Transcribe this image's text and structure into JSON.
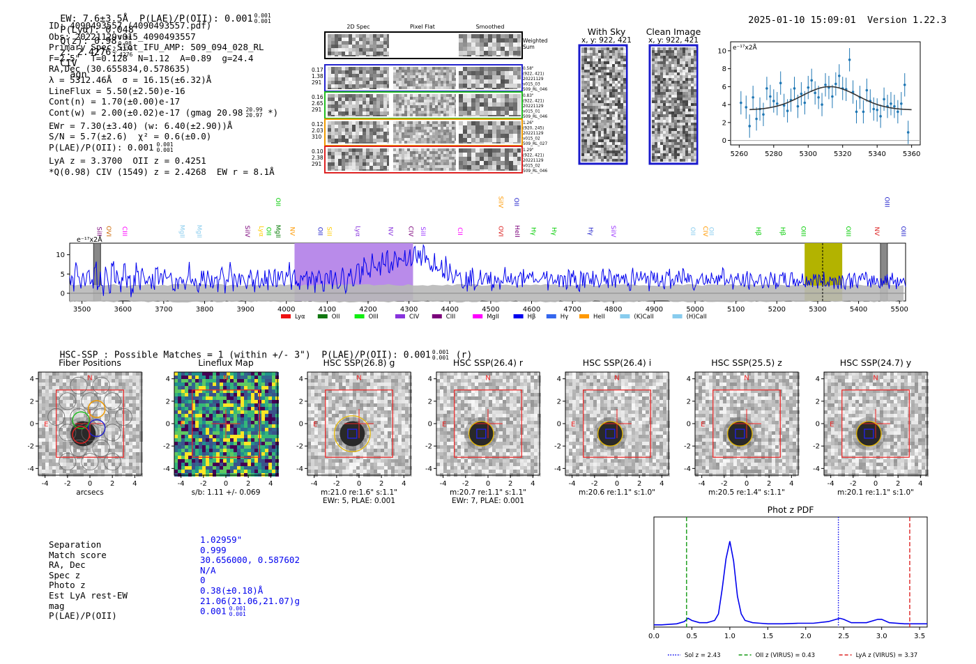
{
  "header": {
    "line": "EW: 7.6±3.5Å  P(LAE)/P(OII): 0.001",
    "pla_sup": "0.001",
    "pla_sub": "0.001",
    "plya": "P(Lyα): 0.048",
    "q": "Q(z): 0.98",
    "q_sup": "0.98",
    "q_sub": "0.98",
    "z": "z: 2.4276",
    "z_sup": "2.4276",
    "z_sub": "2.4276",
    "line_name": "CIV",
    "cls": "agn",
    "timestamp": "2025-01-10 15:09:01",
    "version": "Version 1.22.3"
  },
  "info": {
    "lines": [
      "ID: 4090493557 (4090493557.pdf)",
      "Obs: 20221129v015_4090493557",
      "Primary Spec_Slot_IFU_AMP: 509_094_028_RL",
      "F=2.5\"  T=0.128  N=1.12  A=0.89  g=24.4",
      "RA,Dec (30.655834,0.578635)",
      "λ = 5312.46Å  σ = 16.15(±6.32)Å",
      "LineFlux = 5.50(±2.50)e-16",
      "Cont(n) = 1.70(±0.00)e-17",
      "Cont(w) = 2.00(±0.02)e-17 (gmag 20.98",
      "EWr = 7.30(±3.40) (w: 6.40(±2.90))Å",
      "S/N = 5.7(±2.6)  χ² = 0.6(±0.0)",
      "P(LAE)/P(OII): 0.001",
      "LyA z = 3.3700  OII z = 0.4251",
      "*Q(0.98) CIV (1549) z = 2.4268  EW r = 8.1Å"
    ],
    "gmag_sup": "20.99",
    "gmag_sub": "20.97",
    "gmag_close": " *)",
    "pla_sup": "0.001",
    "pla_sub": "0.001"
  },
  "fiber_panel": {
    "col_titles": [
      "2D Spec",
      "Pixel Flat",
      "Smoothed"
    ],
    "weighted_label": "Weighted Sum",
    "rows": [
      {
        "color": "#2222cc",
        "left": [
          "0.17",
          "1.38",
          "291"
        ],
        "right": [
          "0.58\"",
          "(922, 421)",
          "20221129",
          "v015_03",
          "509_RL_046"
        ]
      },
      {
        "color": "#22bb22",
        "left": [
          "0.16",
          "2.65",
          "291"
        ],
        "right": [
          "0.83\"",
          "(922, 421)",
          "20221129",
          "v015_01",
          "509_RL_046"
        ]
      },
      {
        "color": "#ee9900",
        "left": [
          "0.12",
          "2.03",
          "310"
        ],
        "right": [
          "1.26\"",
          "(920, 245)",
          "20221129",
          "v015_02",
          "509_RL_027"
        ]
      },
      {
        "color": "#dd2222",
        "left": [
          "0.10",
          "2.38",
          "291"
        ],
        "right": [
          "1.29\"",
          "(922, 421)",
          "20221129",
          "v015_02",
          "509_RL_046"
        ]
      }
    ]
  },
  "cutout_strips": {
    "with_sky": {
      "title": "With Sky",
      "coords": "x, y: 922, 421"
    },
    "clean": {
      "title": "Clean Image",
      "coords": "x, y: 922, 421"
    }
  },
  "zoom_chart": {
    "unit_label": "e⁻¹⁷x2Å",
    "x_ticks": [
      5260,
      5280,
      5300,
      5320,
      5340,
      5360
    ],
    "y_ticks": [
      0,
      2,
      4,
      6,
      8,
      10
    ],
    "xlim": [
      5255,
      5365
    ],
    "ylim": [
      -0.5,
      11
    ]
  },
  "wide_chart": {
    "unit_label": "e⁻¹⁷x2Å",
    "x_ticks": [
      3500,
      3600,
      3700,
      3800,
      3900,
      4000,
      4100,
      4200,
      4300,
      4400,
      4500,
      4600,
      4700,
      4800,
      4900,
      5000,
      5100,
      5200,
      5300,
      5400,
      5500
    ],
    "y_ticks": [
      0,
      5,
      10
    ],
    "xlim": [
      3470,
      5515
    ],
    "ylim": [
      -2,
      13
    ],
    "purple_band": [
      4020,
      4310
    ],
    "yellow_band": [
      5268,
      5360
    ],
    "dashed_x": 5312,
    "grey_bars": [
      3537,
      5462
    ],
    "line_labels": [
      {
        "t": "SiII",
        "x": 3537,
        "row": 1,
        "c": "#7a007a"
      },
      {
        "t": "OVI",
        "x": 3560,
        "row": 1,
        "c": "#cc6600"
      },
      {
        "t": "CIII",
        "x": 3600,
        "row": 1,
        "c": "#ff00ff"
      },
      {
        "t": "MgII",
        "x": 3740,
        "row": 1,
        "c": "#88ccee"
      },
      {
        "t": "MgII",
        "x": 3782,
        "row": 1,
        "c": "#88ccee"
      },
      {
        "t": "SiIV",
        "x": 3900,
        "row": 1,
        "c": "#7a007a"
      },
      {
        "t": "Lyα",
        "x": 3934,
        "row": 1,
        "c": "#ffcc00"
      },
      {
        "t": "OII",
        "x": 3952,
        "row": 1,
        "c": "#00cc00"
      },
      {
        "t": "MgII",
        "x": 3975,
        "row": 1,
        "c": "#007700"
      },
      {
        "t": "OII",
        "x": 3975,
        "row": 0,
        "c": "#00cc00"
      },
      {
        "t": "NV",
        "x": 4010,
        "row": 1,
        "c": "#ff9900"
      },
      {
        "t": "OII",
        "x": 4078,
        "row": 1,
        "c": "#2222cc"
      },
      {
        "t": "SiII",
        "x": 4100,
        "row": 1,
        "c": "#ffcc00"
      },
      {
        "t": "Lyα",
        "x": 4170,
        "row": 1,
        "c": "#8833dd"
      },
      {
        "t": "NV",
        "x": 4250,
        "row": 1,
        "c": "#8833dd"
      },
      {
        "t": "CIV",
        "x": 4300,
        "row": 1,
        "c": "#7a007a"
      },
      {
        "t": "SiII",
        "x": 4330,
        "row": 1,
        "c": "#9933ff"
      },
      {
        "t": "CII",
        "x": 4420,
        "row": 1,
        "c": "#ff00ff"
      },
      {
        "t": "OVI",
        "x": 4520,
        "row": 1,
        "c": "#dd2222"
      },
      {
        "t": "SiIV",
        "x": 4520,
        "row": 0,
        "c": "#ff9900"
      },
      {
        "t": "OII",
        "x": 4558,
        "row": 0,
        "c": "#2222cc"
      },
      {
        "t": "HeII",
        "x": 4560,
        "row": 1,
        "c": "#7a007a"
      },
      {
        "t": "Hγ",
        "x": 4600,
        "row": 1,
        "c": "#00cc00"
      },
      {
        "t": "Hγ",
        "x": 4650,
        "row": 1,
        "c": "#00cc00"
      },
      {
        "t": "Hγ",
        "x": 4740,
        "row": 1,
        "c": "#2222cc"
      },
      {
        "t": "SiIV",
        "x": 4795,
        "row": 1,
        "c": "#9933ff"
      },
      {
        "t": "OII",
        "x": 4990,
        "row": 1,
        "c": "#88ccee"
      },
      {
        "t": "CIV",
        "x": 5020,
        "row": 1,
        "c": "#ff9900"
      },
      {
        "t": "OII",
        "x": 5035,
        "row": 1,
        "c": "#88ccee"
      },
      {
        "t": "Hβ",
        "x": 5150,
        "row": 1,
        "c": "#00cc00"
      },
      {
        "t": "Hβ",
        "x": 5210,
        "row": 1,
        "c": "#00cc00"
      },
      {
        "t": "OIII",
        "x": 5260,
        "row": 1,
        "c": "#00cc00"
      },
      {
        "t": "OIII",
        "x": 5370,
        "row": 1,
        "c": "#00cc00"
      },
      {
        "t": "NV",
        "x": 5440,
        "row": 1,
        "c": "#dd2222"
      },
      {
        "t": "OIII",
        "x": 5505,
        "row": 1,
        "c": "#2222cc"
      },
      {
        "t": "OIII",
        "x": 5465,
        "row": 0,
        "c": "#2222cc"
      }
    ],
    "legend": [
      {
        "t": "Lyα",
        "c": "#ee1111"
      },
      {
        "t": "OII",
        "c": "#117711"
      },
      {
        "t": "OIII",
        "c": "#11ee11"
      },
      {
        "t": "CIV",
        "c": "#8833dd"
      },
      {
        "t": "CIII",
        "c": "#7a007a"
      },
      {
        "t": "MgII",
        "c": "#ff00ff"
      },
      {
        "t": "Hβ",
        "c": "#0000ee"
      },
      {
        "t": "Hγ",
        "c": "#3366ee"
      },
      {
        "t": "HeII",
        "c": "#ff9900"
      },
      {
        "t": "(K)CaII",
        "c": "#88ccee"
      },
      {
        "t": "(H)CaII",
        "c": "#88ccee"
      }
    ]
  },
  "hsc": {
    "summary": "HSC-SSP : Possible Matches = 1 (within +/- 3\")  P(LAE)/P(OII): 0.001",
    "sum_sup": "0.001",
    "sum_sub": "0.001",
    "sum_tail": " (r)",
    "ticks": [
      -4,
      -2,
      0,
      2,
      4
    ],
    "panels": [
      {
        "title": "Fiber Positions",
        "cap1": "arcsecs",
        "cap2": ""
      },
      {
        "title": "Lineflux Map",
        "cap1": "s/b: 1.11 +/- 0.069",
        "cap2": ""
      },
      {
        "title": "HSC SSP(26.8) g",
        "cap1": "m:21.0  re:1.6\"  s:1.1\"",
        "cap2": "EWr: 5, PLAE: 0.001"
      },
      {
        "title": "HSC SSP(26.4) r",
        "cap1": "m:20.7  re:1.1\"  s:1.1\"",
        "cap2": "EWr: 7, PLAE: 0.001"
      },
      {
        "title": "HSC SSP(26.4) i",
        "cap1": "m:20.6  re:1.1\"  s:1.0\"",
        "cap2": ""
      },
      {
        "title": "HSC SSP(25.5) z",
        "cap1": "m:20.5  re:1.4\"  s:1.1\"",
        "cap2": ""
      },
      {
        "title": "HSC SSP(24.7) y",
        "cap1": "m:20.1  re:1.1\"  s:1.0\"",
        "cap2": ""
      }
    ],
    "compass_n": "N",
    "compass_e": "E"
  },
  "match_table": {
    "labels": [
      "Separation",
      "Match score",
      "RA, Dec",
      "Spec z",
      "Photo z",
      "Est LyA rest-EW",
      "mag",
      "P(LAE)/P(OII)"
    ],
    "values": [
      "1.02959\"",
      "0.999",
      "30.656000, 0.587602",
      "N/A",
      "0",
      "0.38(±0.18)Å",
      "21.06(21.06,21.07)g",
      "0.001"
    ],
    "pla_sup": "0.001",
    "pla_sub": "0.001"
  },
  "chart_data": [
    {
      "type": "scatter",
      "title": "",
      "ylabel": "e-17 x2Å",
      "x": [
        5261,
        5264,
        5266,
        5268,
        5270,
        5272,
        5274,
        5276,
        5278,
        5280,
        5282,
        5284,
        5286,
        5288,
        5290,
        5292,
        5294,
        5296,
        5298,
        5300,
        5302,
        5304,
        5306,
        5308,
        5310,
        5312,
        5314,
        5316,
        5318,
        5320,
        5322,
        5324,
        5326,
        5328,
        5330,
        5332,
        5334,
        5336,
        5338,
        5340,
        5342,
        5344,
        5346,
        5348,
        5350,
        5352,
        5354,
        5356,
        5358
      ],
      "y": [
        4.2,
        3.7,
        1.6,
        4.8,
        2.4,
        3.5,
        2.9,
        5.8,
        4.9,
        4.4,
        4.1,
        6.4,
        3.9,
        3.3,
        4.5,
        5.8,
        3.8,
        5.2,
        4.2,
        5.9,
        6.7,
        5.3,
        4.8,
        4.0,
        6.2,
        5.9,
        4.9,
        6.3,
        7.2,
        5.8,
        5.7,
        9.0,
        5.4,
        3.2,
        4.8,
        3.2,
        5.6,
        4.4,
        3.5,
        3.4,
        2.7,
        4.6,
        3.8,
        4.1,
        3.8,
        3.2,
        4.1,
        6.2,
        0.9
      ],
      "yerr": 1.3,
      "fit": {
        "model": "gaussian",
        "center": 5312.5,
        "sigma": 16.15,
        "amplitude": 2.6,
        "continuum": 3.4,
        "x_range": [
          5266,
          5360
        ]
      },
      "xlim": [
        5255,
        5365
      ],
      "ylim": [
        -0.5,
        11
      ]
    },
    {
      "type": "line",
      "title": "",
      "ylabel": "e-17 x2Å",
      "x_range": [
        3470,
        5515
      ],
      "step": 6,
      "y": [
        4.1,
        2.3,
        6.8,
        3.4,
        1.2,
        5.9,
        2.8,
        4.4,
        0.6,
        3.1,
        7.5,
        2.6,
        3.9,
        1.5,
        5.3,
        3.7,
        2.2,
        6.1,
        2.9,
        4.8,
        1.9,
        3.5,
        5.6,
        2.4,
        4.2,
        0.9,
        3.8,
        6.5,
        2.1,
        4.6,
        3.0,
        1.7,
        5.1,
        3.3,
        2.7,
        4.9,
        1.4,
        3.6,
        5.7,
        2.5,
        4.0,
        3.2,
        1.8,
        5.4,
        2.9,
        3.7,
        4.5,
        2.0,
        6.0,
        3.1,
        2.6,
        4.3,
        1.1,
        3.9,
        5.2,
        2.8,
        4.1,
        3.4,
        1.6,
        5.8,
        2.3,
        3.8,
        4.7,
        2.2,
        3.5,
        6.2,
        2.7,
        4.4,
        1.9,
        3.6,
        5.0,
        3.0,
        2.4,
        4.6,
        3.3,
        1.5,
        5.5,
        2.8,
        4.0,
        3.7,
        2.1,
        4.8,
        3.2,
        5.9,
        2.5,
        3.9,
        4.5,
        1.8,
        3.4,
        6.3,
        2.9,
        4.2,
        3.1,
        2.0,
        5.3,
        3.6,
        4.7,
        2.6,
        3.8,
        5.1,
        2.3,
        4.3,
        3.5,
        1.7,
        6.1,
        2.8,
        4.0,
        3.3,
        5.6,
        2.4,
        3.9,
        4.9,
        2.2,
        3.6,
        5.4,
        3.0,
        4.4,
        6.8,
        3.8,
        5.2,
        7.1,
        4.6,
        6.0,
        8.2,
        5.1,
        7.4,
        6.3,
        8.9,
        7.0,
        9.3,
        6.6,
        8.1,
        9.8,
        7.5,
        10.4,
        8.3,
        9.6,
        7.8,
        11.2,
        9.0,
        10.1,
        8.6,
        9.5,
        7.9,
        10.8,
        8.4,
        9.2,
        7.3,
        8.8,
        6.9,
        8.0,
        7.2,
        6.1,
        7.6,
        5.4,
        6.7,
        4.8,
        5.9,
        3.6,
        4.5,
        3.1,
        4.0,
        2.7,
        3.8,
        4.4,
        2.9,
        3.5,
        4.1,
        2.6,
        3.9,
        3.2,
        4.6,
        2.8,
        3.4,
        4.2,
        3.0,
        3.7,
        4.8,
        2.5,
        3.6,
        4.3,
        3.1,
        2.7,
        4.0,
        3.5,
        4.7,
        2.9,
        3.3,
        4.4,
        3.8,
        2.6,
        4.1,
        3.2,
        3.9,
        4.6,
        2.8,
        3.5,
        4.2,
        3.0,
        3.7,
        4.9,
        3.3,
        2.9,
        4.5,
        3.6,
        4.0,
        3.1,
        2.7,
        4.3,
        3.8,
        3.4,
        4.7,
        2.5,
        3.9,
        4.1,
        3.2,
        3.6,
        4.4,
        2.8,
        3.5,
        4.0,
        3.7,
        3.1,
        4.8,
        2.9,
        3.4,
        4.2,
        3.8,
        2.6,
        4.5,
        3.3,
        3.9,
        4.1,
        3.0,
        3.6,
        4.3,
        2.7,
        3.5,
        4.6,
        3.2,
        3.8,
        4.0,
        3.1,
        3.7,
        4.4,
        2.9,
        3.3,
        4.2,
        3.6,
        3.0,
        4.7,
        3.4,
        3.9,
        4.1,
        2.8,
        3.5,
        4.3,
        3.8,
        3.2,
        4.5,
        3.1,
        3.6,
        4.0,
        5.2,
        4.4,
        3.7,
        4.9,
        3.3,
        4.1,
        3.5,
        2.9,
        3.8,
        3.2,
        2.6,
        3.4,
        2.8,
        3.6,
        3.0,
        2.4,
        3.3
      ],
      "noise_level": 1.9,
      "xlim": [
        3470,
        5515
      ],
      "ylim": [
        -2,
        13
      ]
    },
    {
      "type": "line",
      "title": "Phot z PDF",
      "x": [
        0.0,
        0.1,
        0.2,
        0.3,
        0.4,
        0.45,
        0.5,
        0.6,
        0.7,
        0.8,
        0.85,
        0.9,
        0.95,
        1.0,
        1.05,
        1.1,
        1.15,
        1.2,
        1.3,
        1.4,
        1.5,
        1.7,
        1.9,
        2.1,
        2.3,
        2.4,
        2.45,
        2.5,
        2.6,
        2.8,
        2.95,
        3.0,
        3.1,
        3.3,
        3.5,
        3.6
      ],
      "y": [
        0.02,
        0.02,
        0.025,
        0.03,
        0.05,
        0.08,
        0.06,
        0.04,
        0.04,
        0.06,
        0.12,
        0.35,
        0.62,
        0.78,
        0.6,
        0.28,
        0.12,
        0.06,
        0.04,
        0.035,
        0.03,
        0.03,
        0.035,
        0.035,
        0.05,
        0.07,
        0.08,
        0.07,
        0.04,
        0.04,
        0.07,
        0.07,
        0.04,
        0.03,
        0.03,
        0.03
      ],
      "vlines": [
        {
          "x": 2.43,
          "style": "dotted",
          "color": "#0000ee",
          "label": "Sol z = 2.43"
        },
        {
          "x": 0.43,
          "style": "dashed",
          "color": "#119911",
          "label": "OII z (VIRUS) = 0.43"
        },
        {
          "x": 3.37,
          "style": "dashed",
          "color": "#dd2222",
          "label": "LyA z (VIRUS) = 3.37"
        }
      ],
      "x_ticks": [
        0.0,
        0.5,
        1.0,
        1.5,
        2.0,
        2.5,
        3.0,
        3.5
      ],
      "x_tick_labels": [
        "0.0",
        "0.5",
        "1.0",
        "1.5",
        "2.0",
        "2.5",
        "3.0",
        "3.5"
      ],
      "xlim": [
        0,
        3.6
      ],
      "ylim": [
        0,
        1.0
      ]
    }
  ]
}
